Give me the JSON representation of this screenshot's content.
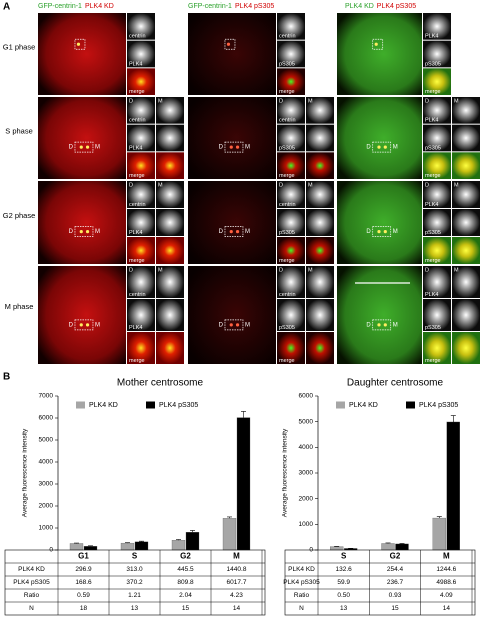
{
  "panel_a": {
    "label": "A",
    "columns": [
      {
        "headers": [
          {
            "text": "GFP-centrin-1",
            "color": "#2aa02a"
          },
          {
            "text": "PLK4 KD",
            "color": "#d00000"
          }
        ]
      },
      {
        "headers": [
          {
            "text": "GFP-centrin-1",
            "color": "#2aa02a"
          },
          {
            "text": "PLK4 pS305",
            "color": "#d00000"
          }
        ]
      },
      {
        "headers": [
          {
            "text": "PLK4 KD",
            "color": "#2aa02a"
          },
          {
            "text": "PLK4 pS305",
            "color": "#d00000"
          }
        ]
      }
    ],
    "inset_labels": [
      [
        "centrin",
        "PLK4",
        "merge"
      ],
      [
        "centrin",
        "pS305",
        "merge"
      ],
      [
        "PLK4",
        "pS305",
        "merge"
      ]
    ],
    "rows": [
      {
        "label": "G1 phase"
      },
      {
        "label": "S phase",
        "markers": [
          "D",
          "M"
        ]
      },
      {
        "label": "G2 phase",
        "markers": [
          "D",
          "M"
        ]
      },
      {
        "label": "M phase",
        "markers": [
          "D",
          "M"
        ]
      }
    ]
  },
  "panel_b": {
    "label": "B"
  },
  "chart_data": [
    {
      "type": "bar",
      "title": "Mother centrosome",
      "y_label": "Average fluorescence intensity",
      "categories": [
        "G1",
        "S",
        "G2",
        "M"
      ],
      "series": [
        {
          "name": "PLK4 KD",
          "color": "#a6a6a6",
          "values": [
            296.9,
            313.0,
            445.5,
            1440.8
          ],
          "value_labels": [
            "296.9",
            "313.0",
            "445.5",
            "1440.8"
          ],
          "errors": [
            20,
            20,
            30,
            60
          ]
        },
        {
          "name": "PLK4 pS305",
          "color": "#000000",
          "values": [
            168.6,
            370.2,
            809.8,
            6017.7
          ],
          "value_labels": [
            "168.6",
            "370.2",
            "809.8",
            "6017.7"
          ],
          "errors": [
            20,
            30,
            80,
            280
          ]
        }
      ],
      "table_rows": [
        {
          "name": "Ratio",
          "cells": [
            "0.59",
            "1.21",
            "2.04",
            "4.23"
          ]
        },
        {
          "name": "N",
          "cells": [
            18,
            13,
            15,
            14
          ]
        }
      ],
      "ylim": [
        0,
        7000
      ],
      "yticks": [
        0,
        1000,
        2000,
        3000,
        4000,
        5000,
        6000,
        7000
      ],
      "legend": "top-left"
    },
    {
      "type": "bar",
      "title": "Daughter centrosome",
      "y_label": "Average fluorescence intensity",
      "categories": [
        "S",
        "G2",
        "M"
      ],
      "series": [
        {
          "name": "PLK4 KD",
          "color": "#a6a6a6",
          "values": [
            132.6,
            254.4,
            1244.6
          ],
          "value_labels": [
            "132.6",
            "254.4",
            "1244.6"
          ],
          "errors": [
            10,
            20,
            60
          ]
        },
        {
          "name": "PLK4 pS305",
          "color": "#000000",
          "values": [
            59.9,
            236.7,
            4988.6
          ],
          "value_labels": [
            "59.9",
            "236.7",
            "4988.6"
          ],
          "errors": [
            5,
            20,
            250
          ]
        }
      ],
      "table_rows": [
        {
          "name": "Ratio",
          "cells": [
            "0.50",
            "0.93",
            "4.09"
          ]
        },
        {
          "name": "N",
          "cells": [
            13,
            15,
            14
          ]
        }
      ],
      "ylim": [
        0,
        6000
      ],
      "yticks": [
        0,
        1000,
        2000,
        3000,
        4000,
        5000,
        6000
      ],
      "legend": "top-left"
    }
  ]
}
